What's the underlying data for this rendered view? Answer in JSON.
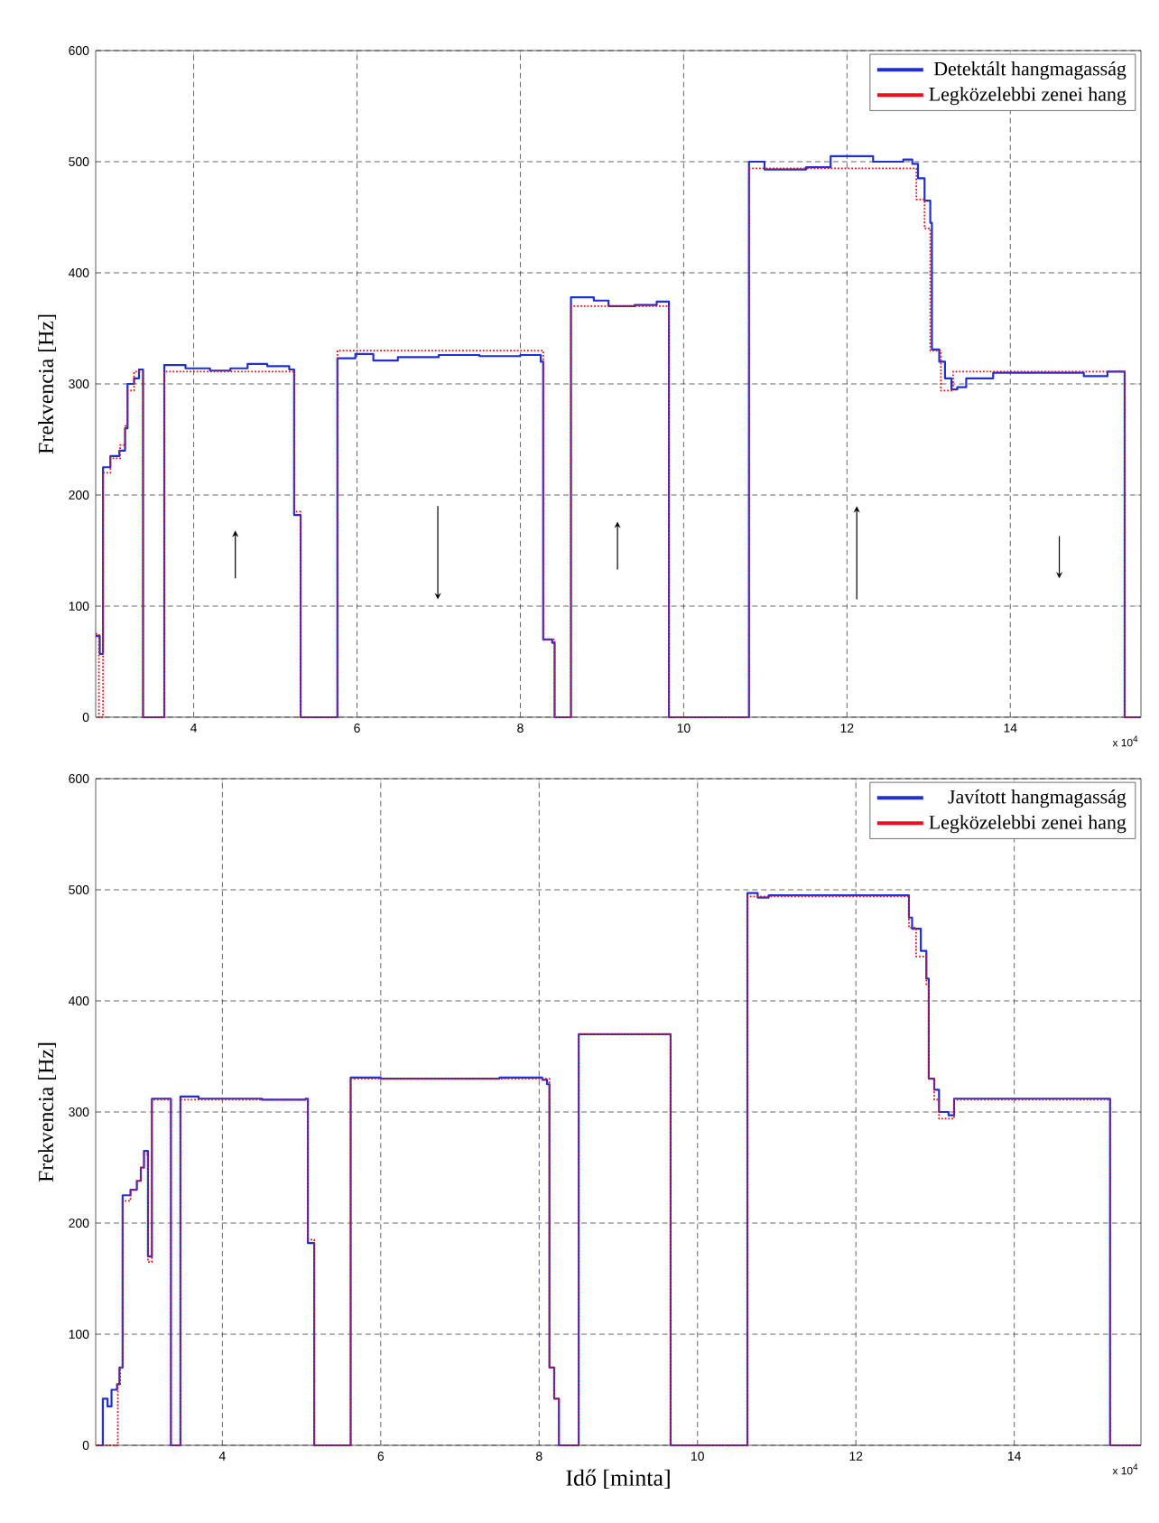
{
  "chart_data": [
    {
      "type": "step",
      "ylabel": "Frekvencia [Hz]",
      "xlim": [
        2.8,
        15.6
      ],
      "xticks": [
        4,
        6,
        8,
        10,
        12,
        14
      ],
      "ylim": [
        0,
        600
      ],
      "yticks": [
        0,
        100,
        200,
        300,
        400,
        500,
        600
      ],
      "grid": true,
      "legend": "top right",
      "annotations": [
        "x 10$^{4}$"
      ],
      "series": [
        {
          "name": "Detektált hangmagasság",
          "color": "#1f2fd6",
          "line_style": "solid",
          "x": [
            2.8,
            2.85,
            2.89,
            2.98,
            3.09,
            3.16,
            3.19,
            3.27,
            3.33,
            3.38,
            3.64,
            3.9,
            4.2,
            4.45,
            4.66,
            4.9,
            5.17,
            5.23,
            5.31,
            5.76,
            5.98,
            6.2,
            6.5,
            7.0,
            7.5,
            8.0,
            8.25,
            8.28,
            8.39,
            8.42,
            8.62,
            8.9,
            9.08,
            9.4,
            9.67,
            9.82,
            10.8,
            10.99,
            11.5,
            11.8,
            12.18,
            12.32,
            12.69,
            12.8,
            12.87,
            12.95,
            13.02,
            13.04,
            13.13,
            13.2,
            13.28,
            13.35,
            13.46,
            13.79,
            14.53,
            14.9,
            15.19,
            15.4,
            15.6
          ],
          "values": [
            73,
            57,
            225,
            235,
            240,
            260,
            300,
            305,
            313,
            0,
            317,
            314,
            312,
            314,
            318,
            316,
            313,
            182,
            0,
            323,
            327,
            321,
            324,
            326,
            325,
            326,
            320,
            70,
            67,
            0,
            378,
            375,
            370,
            371,
            374,
            0,
            500,
            493,
            495,
            505,
            505,
            500,
            502,
            498,
            485,
            465,
            445,
            331,
            320,
            305,
            295,
            297,
            305,
            310,
            310,
            307,
            311,
            0,
            0
          ]
        },
        {
          "name": "Legközelebbi zenei hang",
          "color": "#e8101a",
          "line_style": "dotted",
          "x": [
            2.8,
            2.84,
            2.89,
            2.98,
            3.1,
            3.16,
            3.19,
            3.27,
            3.38,
            3.64,
            5.23,
            5.31,
            5.76,
            8.28,
            8.42,
            8.62,
            9.82,
            10.8,
            12.85,
            12.95,
            13.02,
            13.15,
            13.3,
            15.4,
            15.6
          ],
          "values": [
            75,
            0,
            220,
            233,
            245,
            262,
            294,
            311,
            0,
            311,
            185,
            0,
            330,
            70,
            0,
            370,
            0,
            494,
            466,
            440,
            330,
            294,
            311,
            0,
            0
          ]
        }
      ]
    },
    {
      "type": "step",
      "ylabel": "Frekvencia [Hz]",
      "xlabel": "Idő [minta]",
      "xlim": [
        2.4,
        15.6
      ],
      "xticks": [
        4,
        6,
        8,
        10,
        12,
        14
      ],
      "ylim": [
        0,
        600
      ],
      "yticks": [
        0,
        100,
        200,
        300,
        400,
        500,
        600
      ],
      "grid": true,
      "legend": "top right",
      "annotations": [
        "x 10$^{4}$"
      ],
      "series": [
        {
          "name": "Javított hangmagasság",
          "color": "#1f2fd6",
          "line_style": "solid",
          "x": [
            2.4,
            2.49,
            2.55,
            2.6,
            2.67,
            2.7,
            2.74,
            2.84,
            2.92,
            2.97,
            3.01,
            3.06,
            3.11,
            3.35,
            3.47,
            3.7,
            4.5,
            5.05,
            5.08,
            5.16,
            5.62,
            6.0,
            7.0,
            7.5,
            8.04,
            8.1,
            8.13,
            8.19,
            8.25,
            8.5,
            9.66,
            10.63,
            10.76,
            10.9,
            12.63,
            12.67,
            12.71,
            12.82,
            12.89,
            12.92,
            12.99,
            13.05,
            13.17,
            13.24,
            15.21,
            15.6
          ],
          "values": [
            0,
            42,
            35,
            50,
            55,
            70,
            225,
            230,
            238,
            250,
            265,
            170,
            312,
            0,
            314,
            312,
            311,
            312,
            182,
            0,
            331,
            330,
            330,
            331,
            329,
            325,
            70,
            42,
            0,
            370,
            0,
            497,
            493,
            495,
            495,
            475,
            465,
            445,
            420,
            330,
            320,
            300,
            297,
            312,
            0,
            0
          ]
        },
        {
          "name": "Legközelebbi zenei hang",
          "color": "#e8101a",
          "line_style": "dotted",
          "x": [
            2.4,
            2.68,
            2.71,
            2.74,
            2.84,
            2.92,
            2.97,
            3.01,
            3.06,
            3.11,
            3.35,
            3.47,
            5.08,
            5.16,
            5.62,
            8.13,
            8.19,
            8.25,
            8.5,
            9.66,
            10.63,
            12.67,
            12.76,
            12.89,
            12.92,
            12.99,
            13.05,
            13.24,
            15.21,
            15.6
          ],
          "values": [
            0,
            55,
            70,
            220,
            230,
            238,
            250,
            262,
            165,
            311,
            0,
            311,
            185,
            0,
            330,
            70,
            42,
            0,
            370,
            0,
            494,
            466,
            440,
            415,
            330,
            311,
            294,
            311,
            0,
            0
          ]
        }
      ]
    }
  ]
}
